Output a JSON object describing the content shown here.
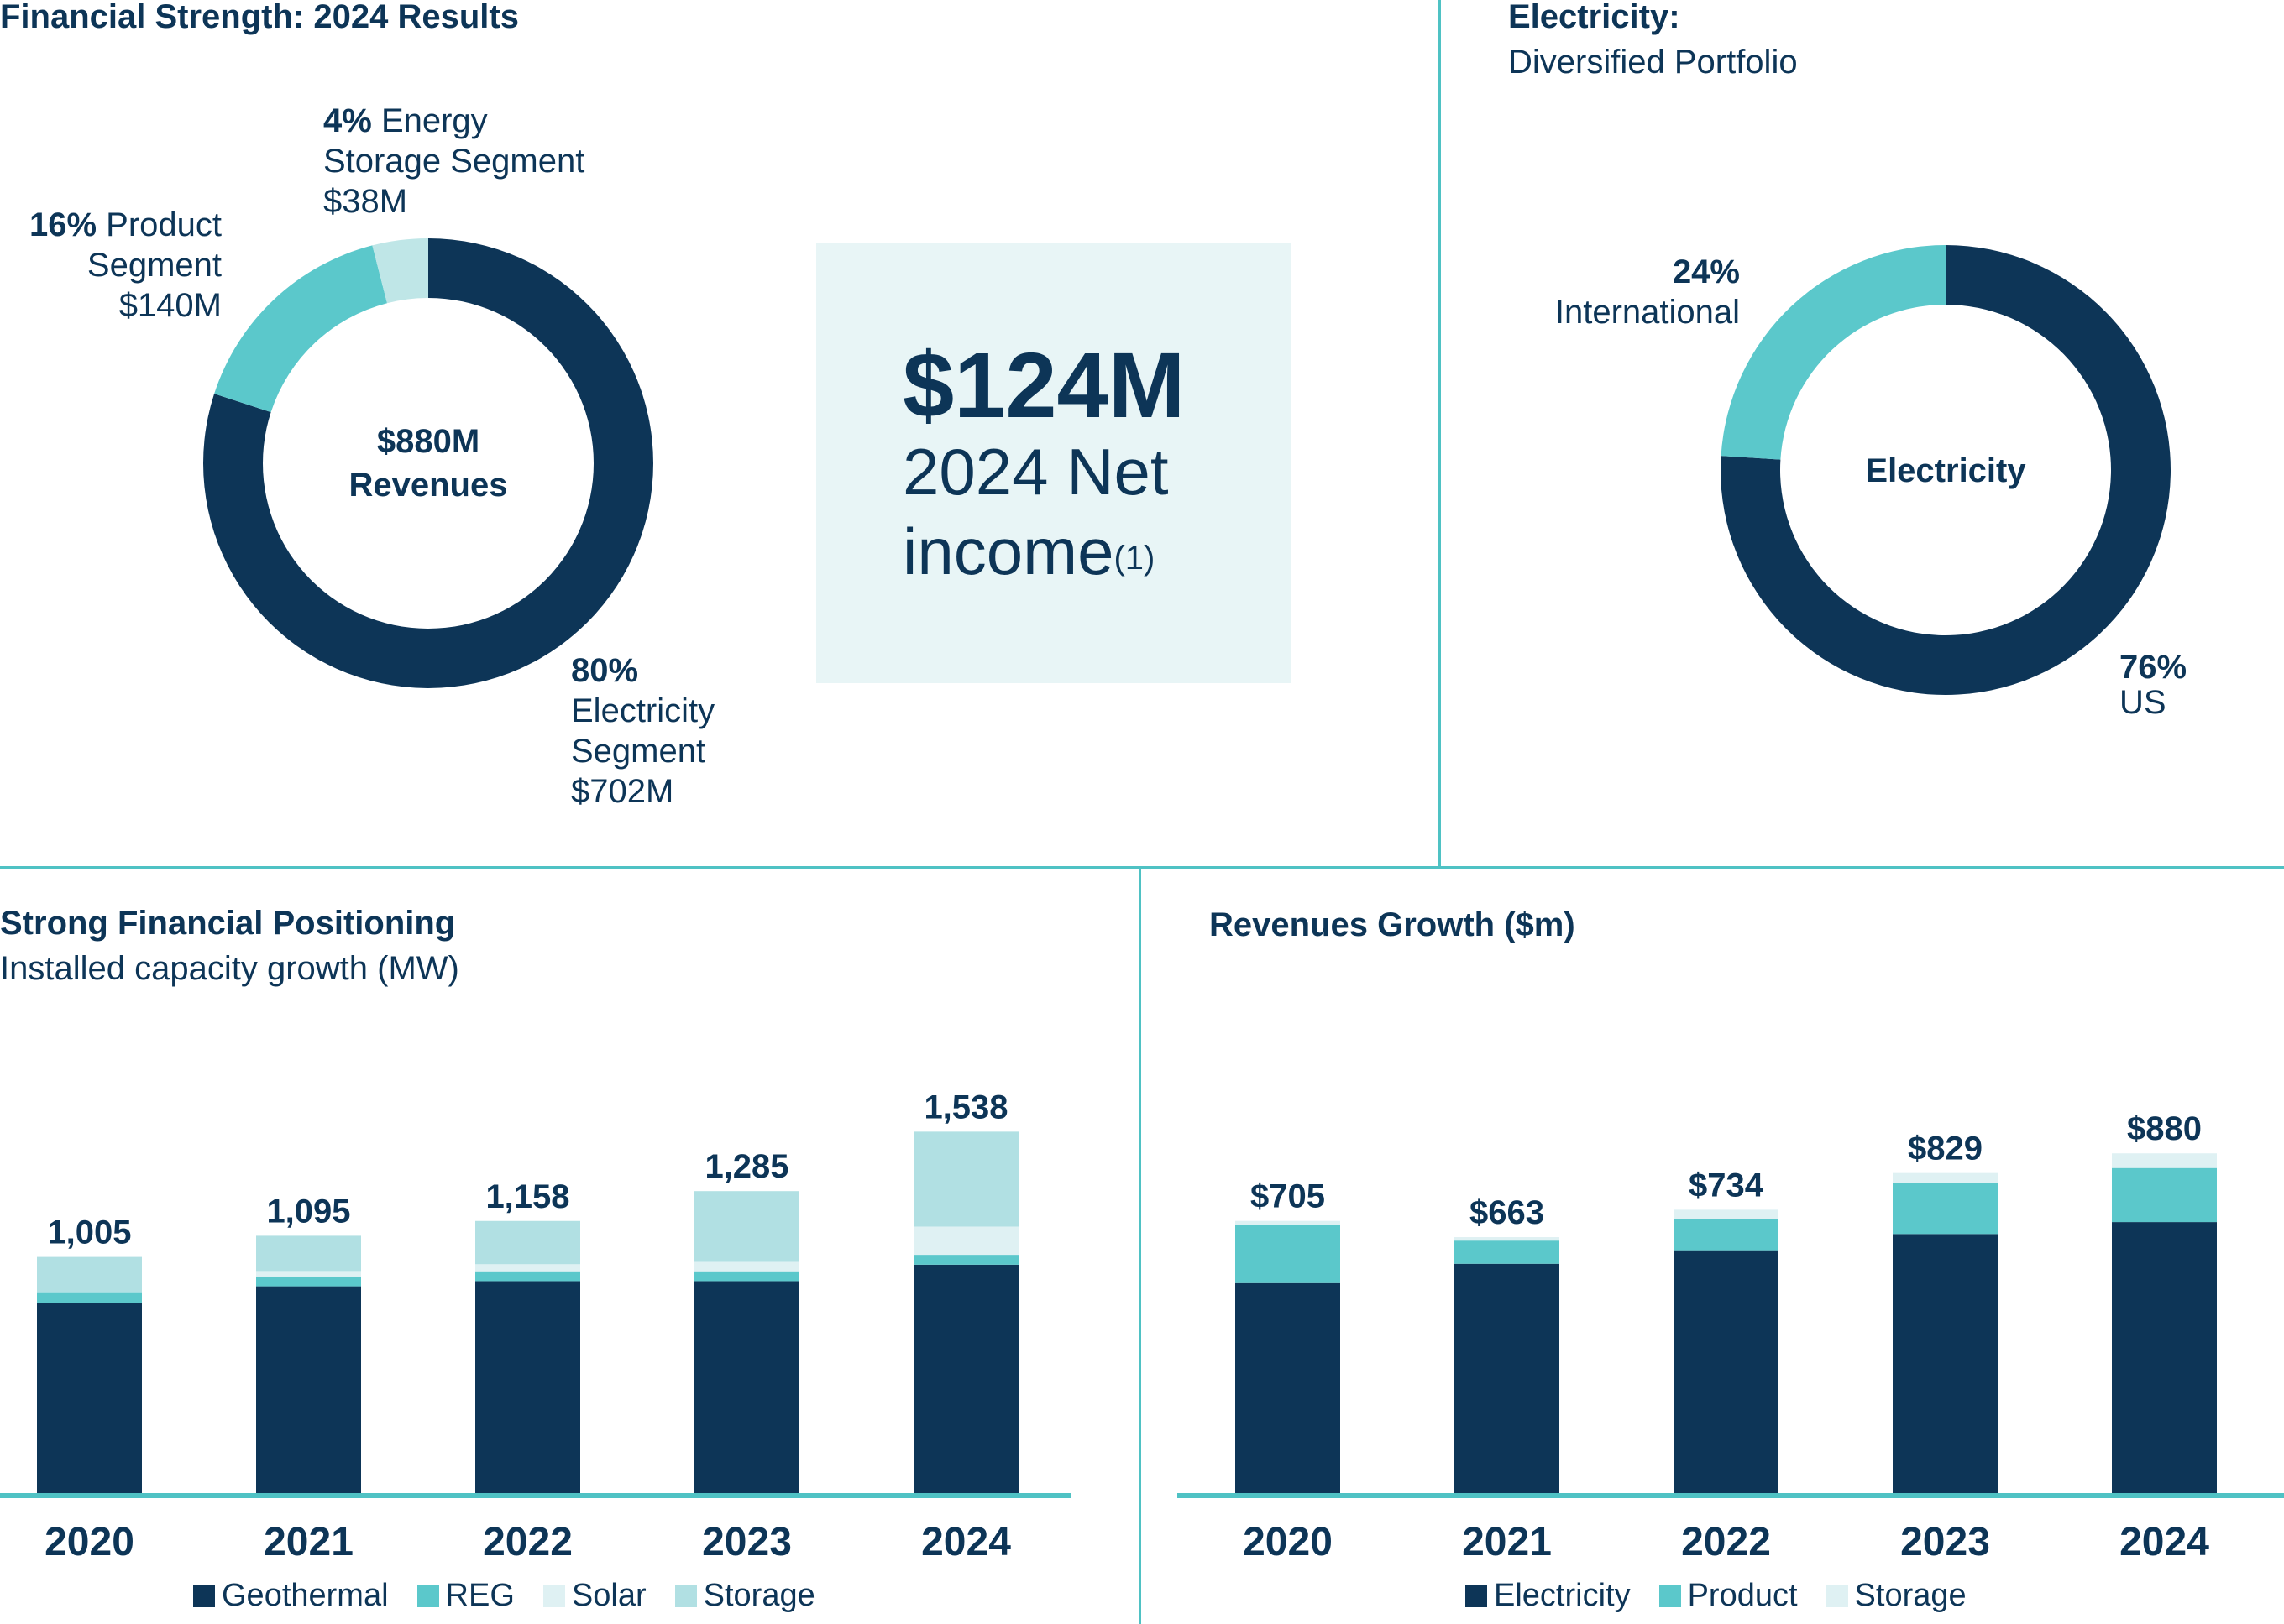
{
  "colors": {
    "navy": "#0d3557",
    "teal": "#5bc8cb",
    "pale": "#bfe6e7",
    "light": "#dff1f3",
    "storage_aqua": "#b1e0e3",
    "divider": "#4fc2c4",
    "box_bg": "#e8f5f6"
  },
  "revenue_panel": {
    "title": "Financial Strength: 2024 Results",
    "center_line1": "$880M",
    "center_line2": "Revenues",
    "labels": {
      "storage": {
        "pct": "4%",
        "l1": "Energy",
        "l2": "Storage Segment",
        "l3": "$38M"
      },
      "product": {
        "pct": "16%",
        "l1": "Product",
        "l2": "Segment",
        "l3": "$140M"
      },
      "electricity": {
        "pct": "80%",
        "l1": "Electricity",
        "l2": "Segment",
        "l3": "$702M"
      }
    }
  },
  "net_income": {
    "amount": "$124M",
    "label_line1": "2024 Net",
    "label_line2": "income",
    "footnote": "(1)"
  },
  "portfolio_panel": {
    "title": "Electricity:",
    "subtitle": "Diversified Portfolio",
    "center": "Electricity",
    "labels": {
      "international": {
        "pct": "24%",
        "name": "International"
      },
      "us": {
        "pct": "76%",
        "name": "US"
      }
    }
  },
  "capacity_panel": {
    "title": "Strong Financial Positioning",
    "subtitle": "Installed capacity growth (MW)",
    "legend": [
      "Geothermal",
      "REG",
      "Solar",
      "Storage"
    ]
  },
  "growth_panel": {
    "title": "Revenues Growth ($m)",
    "legend": [
      "Electricity",
      "Product",
      "Storage"
    ]
  },
  "chart_data": [
    {
      "type": "pie",
      "variant": "donut",
      "categories": [
        "Electricity Segment",
        "Product Segment",
        "Energy Storage Segment"
      ],
      "values": [
        80,
        16,
        4
      ],
      "amounts": [
        "$702M",
        "$140M",
        "$38M"
      ],
      "colors": [
        "#0d3557",
        "#5bc8cb",
        "#bfe6e7"
      ],
      "total": "$880M"
    },
    {
      "type": "pie",
      "variant": "donut",
      "categories": [
        "US",
        "International"
      ],
      "values": [
        76,
        24
      ],
      "colors": [
        "#0d3557",
        "#5bc8cb"
      ]
    },
    {
      "type": "bar",
      "stacked": true,
      "categories": [
        "2020",
        "2021",
        "2022",
        "2023",
        "2024"
      ],
      "totals": [
        "1,005",
        "1,095",
        "1,158",
        "1,285",
        "1,538"
      ],
      "series": [
        {
          "name": "Geothermal",
          "values": [
            810,
            880,
            902,
            902,
            972
          ],
          "color": "#0d3557"
        },
        {
          "name": "REG",
          "values": [
            42,
            42,
            42,
            42,
            42
          ],
          "color": "#5bc8cb"
        },
        {
          "name": "Solar",
          "values": [
            5,
            23,
            30,
            40,
            120
          ],
          "color": "#dff1f3"
        },
        {
          "name": "Storage",
          "values": [
            148,
            150,
            184,
            301,
            404
          ],
          "color": "#b1e0e3"
        }
      ],
      "ylim": [
        0,
        1700
      ]
    },
    {
      "type": "bar",
      "stacked": true,
      "categories": [
        "2020",
        "2021",
        "2022",
        "2023",
        "2024"
      ],
      "totals": [
        "$705",
        "$663",
        "$734",
        "$829",
        "$880"
      ],
      "series": [
        {
          "name": "Electricity",
          "values": [
            544,
            594,
            629,
            671,
            702
          ],
          "color": "#0d3557"
        },
        {
          "name": "Product",
          "values": [
            151,
            60,
            80,
            133,
            140
          ],
          "color": "#5bc8cb"
        },
        {
          "name": "Storage",
          "values": [
            10,
            9,
            25,
            25,
            38
          ],
          "color": "#dff1f3"
        }
      ],
      "ylim": [
        0,
        1000
      ]
    }
  ]
}
